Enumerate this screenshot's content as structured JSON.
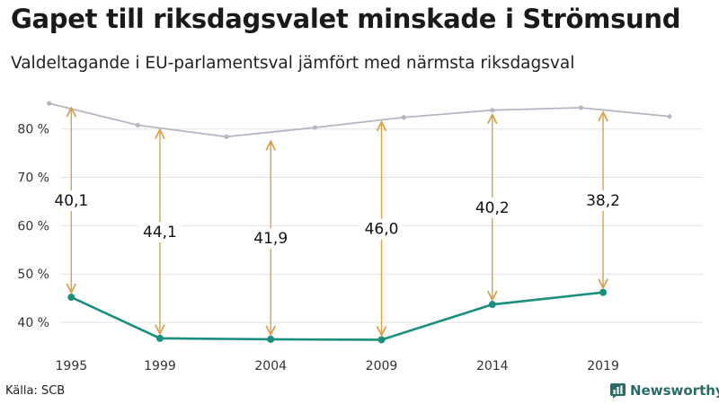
{
  "header": {
    "title": "Gapet till riksdagsvalet minskade i Strömsund",
    "subtitle": "Valdeltagande i EU-parlamentsval jämfört med närmsta riksdagsval"
  },
  "footer": {
    "source": "Källa: SCB",
    "brand": "Newsworthy"
  },
  "colors": {
    "riksdag_line": "#b8b5c4",
    "eu_line": "#1a8f7d",
    "gap_arrow": "#d9a24a",
    "grid": "#e3e3e3",
    "brand": "#2a6b68"
  },
  "icons": {
    "brand": "bar-chart-speech-icon"
  },
  "chart_data": {
    "type": "line",
    "ylim": [
      35,
      87
    ],
    "xlim": [
      1994.5,
      2023.5
    ],
    "y_ticks": [
      40,
      50,
      60,
      70,
      80
    ],
    "y_tick_labels": [
      "40 %",
      "50 %",
      "60 %",
      "70 %",
      "80 %"
    ],
    "x_ticks": [
      1995,
      1999,
      2004,
      2009,
      2014,
      2019
    ],
    "x_tick_labels": [
      "1995",
      "1999",
      "2004",
      "2009",
      "2014",
      "2019"
    ],
    "grid": true,
    "series": [
      {
        "key": "riksdag",
        "x": [
          1994,
          1998,
          2002,
          2006,
          2010,
          2014,
          2018,
          2022
        ],
        "values": [
          85.3,
          80.8,
          78.4,
          80.3,
          82.4,
          83.9,
          84.4,
          82.6
        ]
      },
      {
        "key": "eu",
        "x": [
          1995,
          1999,
          2004,
          2009,
          2014,
          2019
        ],
        "values": [
          45.2,
          36.7,
          36.5,
          36.4,
          43.7,
          46.2
        ]
      }
    ],
    "gaps": [
      {
        "x": 1995,
        "top": 85.3,
        "bottom": 45.2,
        "label": "40,1"
      },
      {
        "x": 1999,
        "top": 80.8,
        "bottom": 36.7,
        "label": "44,1"
      },
      {
        "x": 2004,
        "top": 78.4,
        "bottom": 36.5,
        "label": "41,9"
      },
      {
        "x": 2009,
        "top": 82.4,
        "bottom": 36.4,
        "label": "46,0"
      },
      {
        "x": 2014,
        "top": 83.9,
        "bottom": 43.7,
        "label": "40,2"
      },
      {
        "x": 2019,
        "top": 84.4,
        "bottom": 46.2,
        "label": "38,2"
      }
    ]
  }
}
